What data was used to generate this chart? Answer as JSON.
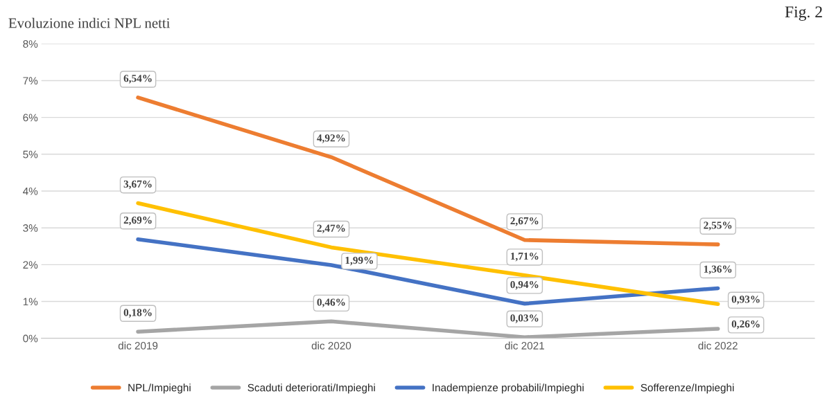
{
  "chart_data": {
    "type": "line",
    "title": "Evoluzione indici NPL netti",
    "annotations": [
      "Fig. 2"
    ],
    "categories": [
      "dic 2019",
      "dic 2020",
      "dic 2021",
      "dic 2022"
    ],
    "series": [
      {
        "name": "NPL/Impieghi",
        "color": "#ed7d31",
        "values": [
          6.54,
          4.92,
          2.67,
          2.55
        ],
        "value_labels": [
          "6,54%",
          "4,92%",
          "2,67%",
          "2,55%"
        ]
      },
      {
        "name": "Scaduti deteriorati/Impieghi",
        "color": "#a5a5a5",
        "values": [
          0.18,
          0.46,
          0.03,
          0.26
        ],
        "value_labels": [
          "0,18%",
          "0,46%",
          "0,03%",
          "0,26%"
        ]
      },
      {
        "name": "Inadempienze probabili/Impieghi",
        "color": "#4472c4",
        "values": [
          2.69,
          1.99,
          0.94,
          1.36
        ],
        "value_labels": [
          "2,69%",
          "1,99%",
          "0,94%",
          "1,36%"
        ]
      },
      {
        "name": "Sofferenze/Impieghi",
        "color": "#ffc000",
        "values": [
          3.67,
          2.47,
          1.71,
          0.93
        ],
        "value_labels": [
          "3,67%",
          "2,47%",
          "1,71%",
          "0,93%"
        ]
      }
    ],
    "ylim": [
      0,
      8
    ],
    "yticks": [
      {
        "value": 0,
        "label": "0%"
      },
      {
        "value": 1,
        "label": "1%"
      },
      {
        "value": 2,
        "label": "2%"
      },
      {
        "value": 3,
        "label": "3%"
      },
      {
        "value": 4,
        "label": "4%"
      },
      {
        "value": 5,
        "label": "5%"
      },
      {
        "value": 6,
        "label": "6%"
      },
      {
        "value": 7,
        "label": "7%"
      },
      {
        "value": 8,
        "label": "8%"
      }
    ],
    "grid": "y",
    "legend": "bottom",
    "marker": "none",
    "line_style": "solid"
  }
}
